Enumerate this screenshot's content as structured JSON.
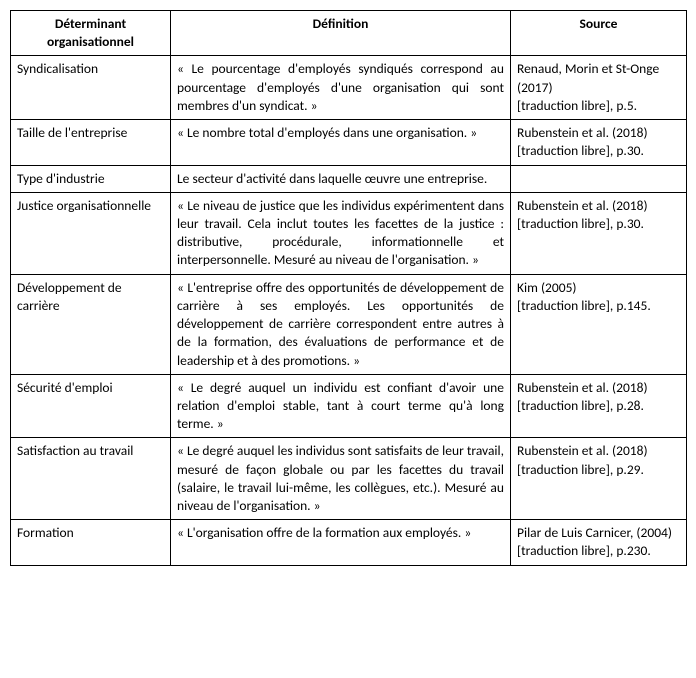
{
  "headers": {
    "col1": "Déterminant organisationnel",
    "col2": "Définition",
    "col3": "Source"
  },
  "rows": [
    {
      "determinant": "Syndicalisation",
      "definition": "« Le pourcentage d'employés syndiqués correspond au pourcentage d'employés d'une organisation qui sont membres d'un syndicat. »",
      "source": "Renaud, Morin et St-Onge (2017)\n[traduction libre], p.5."
    },
    {
      "determinant": "Taille de l'entreprise",
      "definition": " « Le nombre total d'employés dans une organisation. »",
      "source": "Rubenstein et al. (2018) [traduction libre], p.30."
    },
    {
      "determinant": "Type d'industrie",
      "definition": "Le secteur d'activité dans laquelle œuvre une entreprise.",
      "source": ""
    },
    {
      "determinant": "Justice organisationnelle",
      "definition": " « Le niveau de justice que les individus expérimentent dans leur travail. Cela inclut toutes les facettes de la justice : distributive, procédurale, informationnelle et interpersonnelle. Mesuré au niveau de l'organisation. »",
      "source": "Rubenstein et al. (2018) [traduction libre], p.30."
    },
    {
      "determinant": "Développement de carrière",
      "definition": "« L'entreprise offre des opportunités de développement de carrière à ses employés. Les opportunités de développement de carrière correspondent entre autres à de la formation, des évaluations de performance et de leadership et à des promotions. »",
      "source": "Kim (2005)\n[traduction libre], p.145."
    },
    {
      "determinant": "Sécurité d'emploi",
      "definition": " « Le degré auquel un individu est confiant d'avoir une relation d'emploi stable, tant à court terme qu'à long terme. »",
      "source": "Rubenstein et al. (2018) [traduction libre], p.28."
    },
    {
      "determinant": "Satisfaction au travail",
      "definition": " « Le degré auquel les individus sont satisfaits de leur travail, mesuré de façon globale ou par les facettes du travail (salaire, le travail lui-même, les collègues, etc.). Mesuré au niveau de l'organisation. »",
      "source": "Rubenstein et al. (2018) [traduction libre], p.29."
    },
    {
      "determinant": "Formation",
      "definition": " « L'organisation offre de la formation aux employés. »",
      "source": "Pilar de Luis Carnicer, (2004)\n[traduction libre], p.230."
    }
  ]
}
